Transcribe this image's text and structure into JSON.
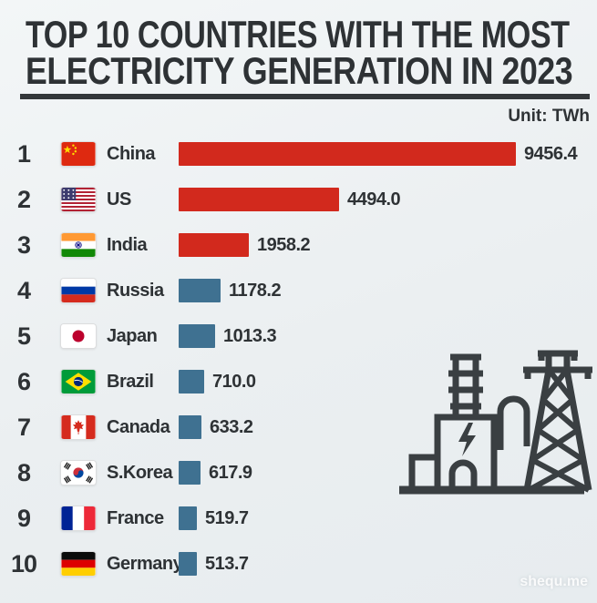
{
  "page": {
    "title_line1": "TOP 10 COUNTRIES WITH THE MOST",
    "title_line2": "ELECTRICITY GENERATION IN 2023",
    "unit_label": "Unit: TWh",
    "watermark": "shequ.me"
  },
  "colors": {
    "bar_red": "#d2291d",
    "bar_blue": "#3f7191",
    "text_dark": "#2e3235",
    "background": "#edf0f2",
    "icon_stroke": "#3a3f42"
  },
  "chart_data": {
    "type": "bar",
    "orientation": "horizontal",
    "title": "TOP 10 COUNTRIES WITH THE MOST ELECTRICITY GENERATION IN 2023",
    "unit": "TWh",
    "xlim": [
      0,
      9456.4
    ],
    "grid": false,
    "legend": "none",
    "categories": [
      "China",
      "US",
      "India",
      "Russia",
      "Japan",
      "Brazil",
      "Canada",
      "S.Korea",
      "France",
      "Germany"
    ],
    "values": [
      9456.4,
      4494.0,
      1958.2,
      1178.2,
      1013.3,
      710.0,
      633.2,
      617.9,
      519.7,
      513.7
    ],
    "value_labels": [
      "9456.4",
      "4494.0",
      "1958.2",
      "1178.2",
      "1013.3",
      "710.0",
      "633.2",
      "617.9",
      "519.7",
      "513.7"
    ],
    "ranks": [
      "1",
      "2",
      "3",
      "4",
      "5",
      "6",
      "7",
      "8",
      "9",
      "10"
    ],
    "bar_color_by_row": [
      "red",
      "red",
      "red",
      "blue",
      "blue",
      "blue",
      "blue",
      "blue",
      "blue",
      "blue"
    ],
    "flags": [
      "china-flag",
      "us-flag",
      "india-flag",
      "russia-flag",
      "japan-flag",
      "brazil-flag",
      "canada-flag",
      "skorea-flag",
      "france-flag",
      "germany-flag"
    ]
  }
}
